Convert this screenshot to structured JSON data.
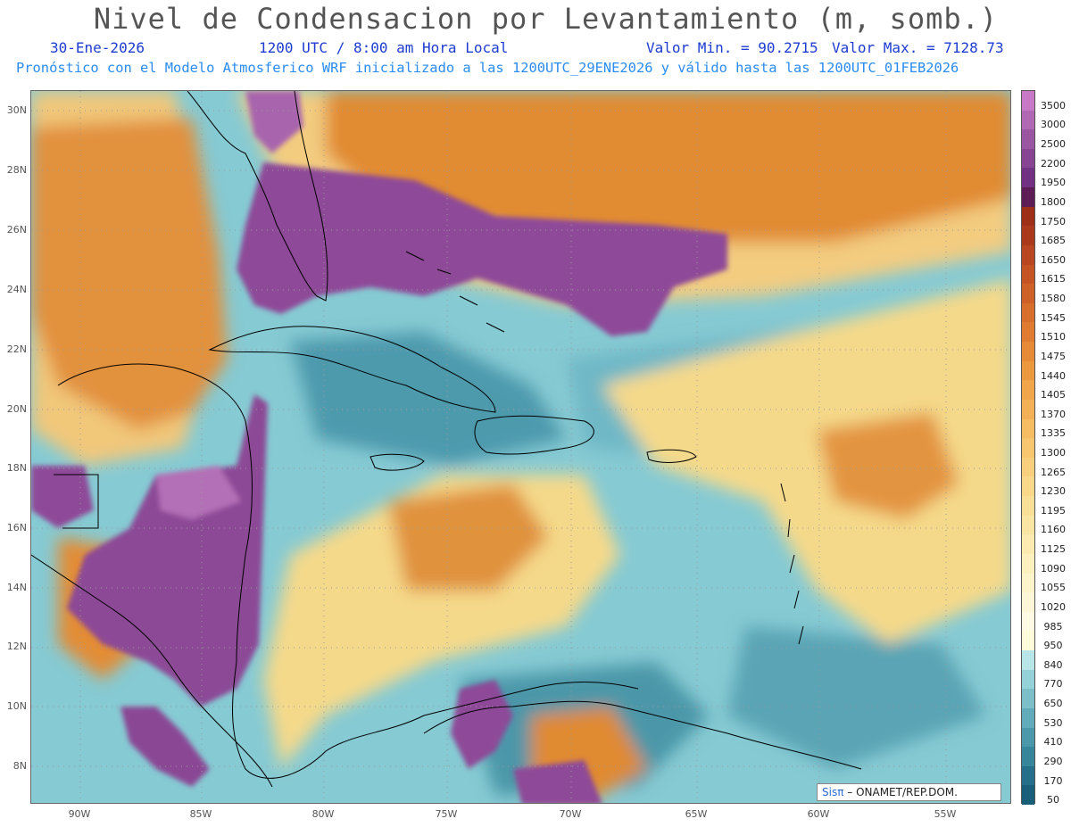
{
  "header": {
    "title": "Nivel de Condensacion por Levantamiento (m, somb.)",
    "date": "30-Ene-2026",
    "time": "1200 UTC / 8:00 am Hora Local",
    "min_label": "Valor Min. = 90.2715",
    "max_label": "Valor Max. = 7128.73",
    "model_info": "Pronóstico con el Modelo Atmosferico WRF inicializado a las 1200UTC_29ENE2026 y válido hasta las  1200UTC_01FEB2026"
  },
  "colors": {
    "title": "#555555",
    "subtitle_dark": "#1e3cd2",
    "subtitle_light": "#2a8cf0",
    "land_low": "#3e8aa3",
    "sea_base": "#86cad3",
    "mid_yellow": "#f3d78a",
    "orange": "#e08a2e",
    "purple": "#8e4a98"
  },
  "axes": {
    "lat_labels": [
      "30N",
      "28N",
      "26N",
      "24N",
      "22N",
      "20N",
      "18N",
      "16N",
      "14N",
      "12N",
      "10N",
      "8N"
    ],
    "lon_labels": [
      "90W",
      "85W",
      "80W",
      "75W",
      "70W",
      "65W",
      "60W",
      "55W"
    ]
  },
  "colorbar": {
    "labels": [
      "3500",
      "3000",
      "2500",
      "2200",
      "1950",
      "1800",
      "1750",
      "1685",
      "1650",
      "1615",
      "1580",
      "1545",
      "1510",
      "1475",
      "1440",
      "1405",
      "1370",
      "1335",
      "1300",
      "1265",
      "1230",
      "1195",
      "1160",
      "1125",
      "1090",
      "1055",
      "1020",
      "985",
      "950",
      "840",
      "770",
      "650",
      "530",
      "410",
      "290",
      "170",
      "50"
    ],
    "colors": [
      "#c779c6",
      "#b068b3",
      "#9b56a2",
      "#874493",
      "#733184",
      "#5e1c56",
      "#9e2f18",
      "#ab3a1c",
      "#b84620",
      "#c45424",
      "#ce6128",
      "#d76e2c",
      "#df7c31",
      "#e68a37",
      "#ec983f",
      "#f0a54a",
      "#f3b056",
      "#f5bc62",
      "#f7c66f",
      "#f8cf7c",
      "#f9d889",
      "#fadf96",
      "#fbe5a3",
      "#fbebb1",
      "#fcf0be",
      "#fdf4cb",
      "#fdf7d8",
      "#fefae4",
      "#fdfbd9",
      "#b8e6e8",
      "#95d1d8",
      "#7cbfc9",
      "#62abba",
      "#4b98ab",
      "#37869c",
      "#256f8b",
      "#1a5f79"
    ]
  },
  "credit": {
    "brand": "Sisπ",
    "text": " – ONAMET/REP.DOM."
  }
}
